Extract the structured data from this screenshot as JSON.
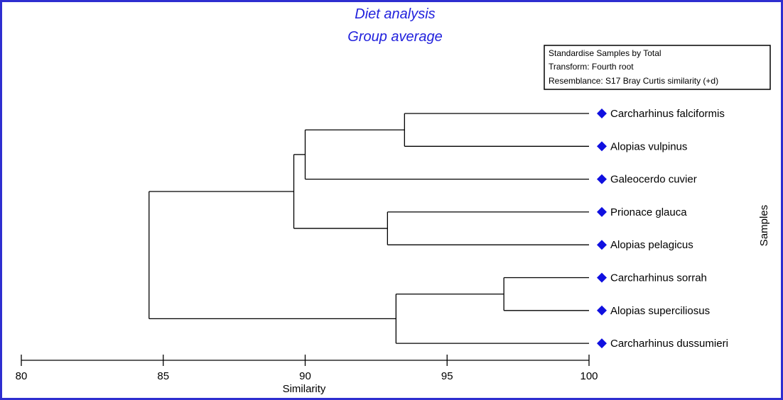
{
  "chart_data": {
    "type": "dendrogram",
    "title": "Diet analysis",
    "subtitle": "Group average",
    "xlabel": "Similarity",
    "ylabel": "Samples",
    "xlim": [
      80,
      100
    ],
    "xticks": [
      80,
      85,
      90,
      95,
      100
    ],
    "notes": [
      "Standardise Samples by Total",
      "Transform: Fourth root",
      "Resemblance: S17 Bray Curtis similarity (+d)"
    ],
    "leaves": [
      "Carcharhinus falciformis",
      "Alopias vulpinus",
      "Galeocerdo cuvier",
      "Prionace glauca",
      "Alopias pelagicus",
      "Carcharhinus sorrah",
      "Alopias superciliosus",
      "Carcharhinus dussumieri"
    ],
    "merges": [
      {
        "id": "m1",
        "children": [
          "L0",
          "L1"
        ],
        "similarity": 93.5
      },
      {
        "id": "m2",
        "children": [
          "m1",
          "L2"
        ],
        "similarity": 90.0
      },
      {
        "id": "m3",
        "children": [
          "L3",
          "L4"
        ],
        "similarity": 92.9
      },
      {
        "id": "m4",
        "children": [
          "m2",
          "m3"
        ],
        "similarity": 89.6
      },
      {
        "id": "m5",
        "children": [
          "L5",
          "L6"
        ],
        "similarity": 97.0
      },
      {
        "id": "m6",
        "children": [
          "m5",
          "L7"
        ],
        "similarity": 93.2
      },
      {
        "id": "m7",
        "children": [
          "m4",
          "m6"
        ],
        "similarity": 84.5
      }
    ],
    "colors": {
      "title": "#2222dd",
      "marker": "#1010e0",
      "frame": "#2e2ed0",
      "lines": "#000000"
    }
  }
}
